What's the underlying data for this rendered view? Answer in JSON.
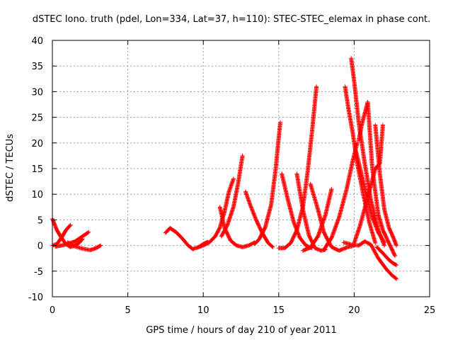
{
  "chart_data": {
    "type": "scatter",
    "title": "dSTEC Iono. truth (pdel, Lon=334, Lat=37, h=110): STEC-STEC_elemax in phase cont.",
    "xlabel": "GPS time / hours of day 210 of year 2011",
    "ylabel": "dSTEC  / TECUs",
    "xlim": [
      0,
      25
    ],
    "ylim": [
      -10,
      40
    ],
    "xticks": [
      "0",
      "5",
      "10",
      "15",
      "20",
      "25"
    ],
    "yticks": [
      "-10",
      "-5",
      "0",
      "5",
      "10",
      "15",
      "20",
      "25",
      "30",
      "35",
      "40"
    ],
    "grid": true,
    "legend": "none",
    "marker": "+",
    "color": "#ff0000",
    "series": [
      {
        "x": [
          0.0,
          0.3,
          0.6,
          0.9,
          1.2,
          1.5,
          1.8,
          2.0
        ],
        "y": [
          5.2,
          3.0,
          1.5,
          0.3,
          -0.3,
          0.0,
          0.6,
          1.3
        ]
      },
      {
        "x": [
          0.0,
          0.3,
          0.6,
          0.9,
          1.2
        ],
        "y": [
          0.0,
          0.3,
          1.5,
          3.0,
          4.0
        ]
      },
      {
        "x": [
          0.2,
          0.6,
          1.0,
          1.5,
          2.0,
          2.4
        ],
        "y": [
          -0.2,
          0.0,
          0.3,
          0.8,
          1.8,
          2.6
        ]
      },
      {
        "x": [
          1.0,
          1.5,
          2.0,
          2.5,
          2.9,
          3.2
        ],
        "y": [
          0.6,
          -0.2,
          -0.6,
          -0.9,
          -0.5,
          0.0
        ]
      },
      {
        "x": [
          7.5,
          7.8,
          8.2,
          8.6,
          9.0,
          9.3,
          9.7,
          10.0,
          10.3
        ],
        "y": [
          2.5,
          3.4,
          2.6,
          1.4,
          0.0,
          -0.7,
          -0.3,
          0.3,
          0.7
        ]
      },
      {
        "x": [
          9.7,
          10.0,
          10.4,
          10.8,
          11.1,
          11.4,
          11.7,
          12.0
        ],
        "y": [
          -0.3,
          0.0,
          0.6,
          1.8,
          3.5,
          6.5,
          10.5,
          13.0
        ]
      },
      {
        "x": [
          11.1,
          11.4,
          11.8,
          12.2,
          12.6,
          13.0,
          13.4
        ],
        "y": [
          7.5,
          3.5,
          1.0,
          0.0,
          -0.3,
          0.0,
          0.6
        ]
      },
      {
        "x": [
          11.2,
          11.6,
          12.0,
          12.3,
          12.6
        ],
        "y": [
          1.8,
          4.0,
          7.5,
          12.0,
          17.5
        ]
      },
      {
        "x": [
          12.8,
          13.1,
          13.5,
          13.9,
          14.3,
          14.6
        ],
        "y": [
          10.5,
          8.0,
          5.0,
          2.5,
          0.5,
          -0.3
        ]
      },
      {
        "x": [
          13.4,
          13.7,
          14.1,
          14.5,
          14.8,
          15.1
        ],
        "y": [
          0.3,
          1.2,
          3.5,
          8.0,
          15.0,
          24.0
        ]
      },
      {
        "x": [
          15.2,
          15.6,
          16.0,
          16.4,
          16.8,
          17.2
        ],
        "y": [
          14.0,
          9.0,
          4.5,
          1.5,
          0.0,
          -0.5
        ]
      },
      {
        "x": [
          15.0,
          15.4,
          15.8,
          16.2,
          16.6,
          16.9,
          17.2,
          17.5
        ],
        "y": [
          -0.5,
          -0.5,
          0.5,
          3.0,
          7.5,
          14.0,
          22.0,
          31.0
        ]
      },
      {
        "x": [
          16.2,
          16.6,
          17.0,
          17.4,
          17.8,
          18.1
        ],
        "y": [
          14.0,
          7.0,
          2.0,
          -0.5,
          -1.0,
          -0.8
        ]
      },
      {
        "x": [
          16.6,
          17.1,
          17.6,
          18.1,
          18.5
        ],
        "y": [
          -1.0,
          -0.4,
          1.8,
          6.0,
          11.0
        ]
      },
      {
        "x": [
          17.1,
          17.6,
          18.0,
          18.5,
          19.0,
          19.5,
          20.0
        ],
        "y": [
          12.0,
          7.0,
          2.5,
          -0.3,
          -1.0,
          -0.4,
          0.0
        ]
      },
      {
        "x": [
          18.0,
          18.5,
          19.0,
          19.5,
          19.9,
          20.2
        ],
        "y": [
          -0.8,
          1.5,
          5.5,
          11.0,
          16.5,
          20.0
        ]
      },
      {
        "x": [
          19.4,
          19.6,
          19.9,
          20.2,
          20.6,
          21.0,
          21.4
        ],
        "y": [
          31.0,
          27.0,
          22.0,
          16.0,
          10.0,
          4.5,
          0.5
        ]
      },
      {
        "x": [
          19.8,
          20.0,
          20.3,
          20.7,
          21.1,
          21.6,
          22.0
        ],
        "y": [
          36.5,
          32.0,
          24.0,
          16.0,
          9.0,
          3.0,
          0.0
        ]
      },
      {
        "x": [
          20.1,
          20.4,
          20.8,
          21.2,
          21.6,
          22.0
        ],
        "y": [
          18.5,
          15.0,
          10.0,
          5.5,
          2.5,
          0.6
        ]
      },
      {
        "x": [
          20.3,
          20.5,
          20.9,
          21.2,
          21.6,
          21.9,
          22.3,
          22.7
        ],
        "y": [
          20.5,
          23.5,
          28.0,
          15.0,
          6.0,
          3.0,
          0.5,
          -2.0
        ]
      },
      {
        "x": [
          20.0,
          20.4,
          20.9,
          21.4,
          21.7,
          21.9
        ],
        "y": [
          0.5,
          4.0,
          9.5,
          15.0,
          16.0,
          23.5
        ]
      },
      {
        "x": [
          21.4,
          21.7,
          22.0,
          22.3,
          22.6,
          22.8
        ],
        "y": [
          23.5,
          14.0,
          7.0,
          3.5,
          1.5,
          0.0
        ]
      },
      {
        "x": [
          19.3,
          19.8,
          20.3,
          20.7,
          21.1,
          21.6,
          22.1,
          22.5,
          22.8
        ],
        "y": [
          0.6,
          0.2,
          0.0,
          0.8,
          0.2,
          -2.5,
          -4.5,
          -5.8,
          -6.5
        ]
      },
      {
        "x": [
          21.5,
          21.9,
          22.3,
          22.6,
          22.8
        ],
        "y": [
          -0.3,
          -1.5,
          -2.8,
          -3.5,
          -3.8
        ]
      }
    ]
  }
}
